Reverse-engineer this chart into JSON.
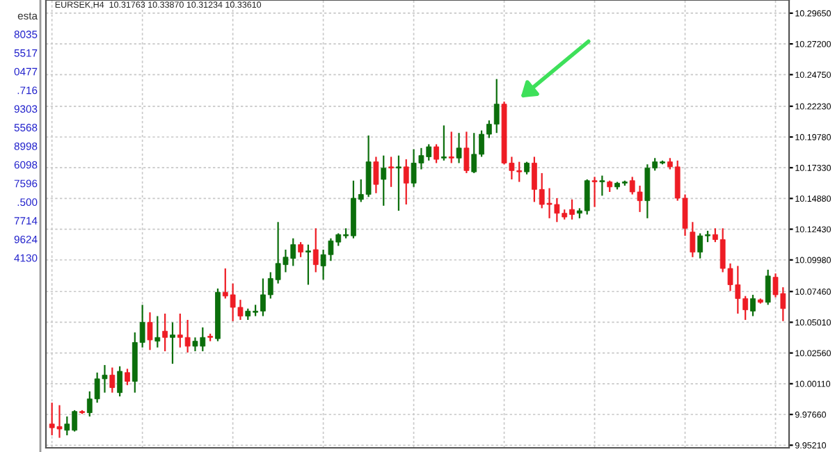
{
  "chart_data": {
    "type": "candlestick",
    "title": "EURSEK,H4  10.31763 10.33870 10.31234 10.33610",
    "annotations": [
      "esta",
      "8035",
      "5517",
      "0477",
      ".716",
      "9303",
      "5568",
      "8998",
      "6098",
      "7596",
      ".500",
      "7714",
      "9624",
      "4130"
    ],
    "categories": [
      null,
      null,
      null,
      null,
      null,
      null,
      null,
      null,
      null,
      null,
      null,
      null,
      null,
      null,
      null,
      null,
      null,
      null,
      null,
      null,
      null,
      null,
      null,
      null,
      null,
      null,
      null,
      null,
      null,
      null,
      null,
      null,
      null,
      null,
      null,
      null,
      null,
      null,
      null,
      null,
      null,
      null,
      null,
      null,
      null,
      null,
      null,
      null,
      null,
      null,
      null,
      null,
      null,
      null,
      null,
      null,
      null,
      null,
      null,
      null,
      null,
      null,
      null,
      null,
      null,
      null,
      null,
      null,
      null,
      null,
      null,
      null,
      null,
      null,
      null,
      null,
      null,
      null,
      null,
      null,
      null,
      null,
      null,
      null,
      null,
      null,
      null,
      null,
      null,
      null,
      null,
      null,
      null,
      null,
      null,
      null,
      null,
      null
    ],
    "ohlc": [
      [
        9.969,
        9.986,
        9.96,
        9.966
      ],
      [
        9.967,
        9.984,
        9.958,
        9.965
      ],
      [
        9.964,
        9.975,
        9.96,
        9.969
      ],
      [
        9.964,
        9.98,
        9.963,
        9.979
      ],
      [
        9.979,
        9.98,
        9.977,
        9.978
      ],
      [
        9.978,
        9.995,
        9.975,
        9.989
      ],
      [
        9.989,
        10.01,
        9.986,
        10.005
      ],
      [
        10.005,
        10.016,
        9.994,
        10.008
      ],
      [
        10.008,
        10.014,
        9.994,
        9.998
      ],
      [
        9.994,
        10.015,
        9.991,
        10.011
      ],
      [
        10.01,
        10.013,
        10.0,
        10.003
      ],
      [
        10.003,
        10.042,
        9.994,
        10.034
      ],
      [
        10.034,
        10.064,
        10.03,
        10.05
      ],
      [
        10.05,
        10.058,
        10.028,
        10.036
      ],
      [
        10.035,
        10.055,
        10.03,
        10.038
      ],
      [
        10.043,
        10.057,
        10.027,
        10.038
      ],
      [
        10.038,
        10.05,
        10.017,
        10.04
      ],
      [
        10.04,
        10.057,
        10.03,
        10.038
      ],
      [
        10.038,
        10.052,
        10.026,
        10.031
      ],
      [
        10.031,
        10.038,
        10.027,
        10.035
      ],
      [
        10.031,
        10.046,
        10.027,
        10.038
      ],
      [
        10.039,
        10.041,
        10.035,
        10.038
      ],
      [
        10.037,
        10.077,
        10.035,
        10.074
      ],
      [
        10.074,
        10.093,
        10.069,
        10.071
      ],
      [
        10.072,
        10.081,
        10.051,
        10.062
      ],
      [
        10.062,
        10.068,
        10.052,
        10.055
      ],
      [
        10.055,
        10.061,
        10.052,
        10.059
      ],
      [
        10.058,
        10.064,
        10.055,
        10.059
      ],
      [
        10.059,
        10.085,
        10.055,
        10.072
      ],
      [
        10.072,
        10.09,
        10.069,
        10.085
      ],
      [
        10.084,
        10.13,
        10.081,
        10.097
      ],
      [
        10.096,
        10.108,
        10.09,
        10.102
      ],
      [
        10.101,
        10.117,
        10.095,
        10.112
      ],
      [
        10.112,
        10.114,
        10.102,
        10.106
      ],
      [
        10.106,
        10.112,
        10.08,
        10.107
      ],
      [
        10.108,
        10.125,
        10.09,
        10.096
      ],
      [
        10.095,
        10.108,
        10.084,
        10.104
      ],
      [
        10.104,
        10.117,
        10.099,
        10.115
      ],
      [
        10.114,
        10.121,
        10.111,
        10.12
      ],
      [
        10.119,
        10.125,
        10.117,
        10.12
      ],
      [
        10.119,
        10.163,
        10.117,
        10.149
      ],
      [
        10.148,
        10.164,
        10.146,
        10.152
      ],
      [
        10.152,
        10.199,
        10.15,
        10.178
      ],
      [
        10.178,
        10.182,
        10.153,
        10.16
      ],
      [
        10.164,
        10.183,
        10.143,
        10.173
      ],
      [
        10.174,
        10.182,
        10.158,
        10.173
      ],
      [
        10.173,
        10.183,
        10.139,
        10.174
      ],
      [
        10.174,
        10.18,
        10.144,
        10.161
      ],
      [
        10.161,
        10.188,
        10.158,
        10.177
      ],
      [
        10.177,
        10.189,
        10.172,
        10.183
      ],
      [
        10.182,
        10.192,
        10.179,
        10.19
      ],
      [
        10.19,
        10.192,
        10.177,
        10.18
      ],
      [
        10.181,
        10.207,
        10.179,
        10.182
      ],
      [
        10.182,
        10.202,
        10.177,
        10.181
      ],
      [
        10.181,
        10.201,
        10.177,
        10.189
      ],
      [
        10.189,
        10.202,
        10.169,
        10.171
      ],
      [
        10.17,
        10.201,
        10.169,
        10.184
      ],
      [
        10.184,
        10.203,
        10.182,
        10.2
      ],
      [
        10.2,
        10.211,
        10.197,
        10.208
      ],
      [
        10.208,
        10.244,
        10.201,
        10.224
      ],
      [
        10.224,
        10.226,
        10.176,
        10.177
      ],
      [
        10.177,
        10.182,
        10.164,
        10.171
      ],
      [
        10.171,
        10.178,
        10.162,
        10.17
      ],
      [
        10.17,
        10.178,
        10.168,
        10.177
      ],
      [
        10.177,
        10.182,
        10.146,
        10.156
      ],
      [
        10.156,
        10.169,
        10.141,
        10.144
      ],
      [
        10.145,
        10.157,
        10.133,
        10.144
      ],
      [
        10.144,
        10.149,
        10.13,
        10.137
      ],
      [
        10.137,
        10.14,
        10.132,
        10.134
      ],
      [
        10.14,
        10.148,
        10.132,
        10.136
      ],
      [
        10.137,
        10.141,
        10.133,
        10.139
      ],
      [
        10.139,
        10.164,
        10.136,
        10.163
      ],
      [
        10.163,
        10.166,
        10.142,
        10.162
      ],
      [
        10.162,
        10.167,
        10.151,
        10.163
      ],
      [
        10.162,
        10.163,
        10.154,
        10.158
      ],
      [
        10.158,
        10.162,
        10.156,
        10.161
      ],
      [
        10.161,
        10.163,
        10.159,
        10.162
      ],
      [
        10.163,
        10.166,
        10.152,
        10.154
      ],
      [
        10.154,
        10.159,
        10.138,
        10.147
      ],
      [
        10.147,
        10.176,
        10.133,
        10.173
      ],
      [
        10.173,
        10.181,
        10.171,
        10.178
      ],
      [
        10.177,
        10.179,
        10.176,
        10.178
      ],
      [
        10.178,
        10.181,
        10.172,
        10.174
      ],
      [
        10.174,
        10.179,
        10.147,
        10.149
      ],
      [
        10.149,
        10.152,
        10.119,
        10.125
      ],
      [
        10.122,
        10.13,
        10.102,
        10.106
      ],
      [
        10.106,
        10.121,
        10.101,
        10.119
      ],
      [
        10.119,
        10.123,
        10.114,
        10.12
      ],
      [
        10.12,
        10.125,
        10.114,
        10.116
      ],
      [
        10.116,
        10.125,
        10.09,
        10.093
      ],
      [
        10.093,
        10.097,
        10.075,
        10.08
      ],
      [
        10.08,
        10.095,
        10.057,
        10.069
      ],
      [
        10.069,
        10.071,
        10.052,
        10.06
      ],
      [
        10.059,
        10.072,
        10.055,
        10.069
      ],
      [
        10.068,
        10.069,
        10.065,
        10.066
      ],
      [
        10.066,
        10.092,
        10.064,
        10.087
      ],
      [
        10.086,
        10.089,
        10.07,
        10.072
      ],
      [
        10.073,
        10.078,
        10.051,
        10.061
      ]
    ],
    "ylim": [
      9.95,
      10.307
    ],
    "yticks": [
      {
        "value": 10.2965,
        "label": "10.29650"
      },
      {
        "value": 10.272,
        "label": "10.27200"
      },
      {
        "value": 10.2475,
        "label": "10.24750"
      },
      {
        "value": 10.2223,
        "label": "10.22230"
      },
      {
        "value": 10.1978,
        "label": "10.19780"
      },
      {
        "value": 10.1733,
        "label": "10.17330"
      },
      {
        "value": 10.1488,
        "label": "10.14880"
      },
      {
        "value": 10.1243,
        "label": "10.12430"
      },
      {
        "value": 10.0998,
        "label": "10.09980"
      },
      {
        "value": 10.0746,
        "label": "10.07460"
      },
      {
        "value": 10.0501,
        "label": "10.05010"
      },
      {
        "value": 10.0256,
        "label": "10.02560"
      },
      {
        "value": 10.0011,
        "label": "10.00110"
      },
      {
        "value": 9.9766,
        "label": "9.97660"
      },
      {
        "value": 9.9521,
        "label": "9.95210"
      }
    ],
    "tick_labels": "y",
    "grid": true
  }
}
